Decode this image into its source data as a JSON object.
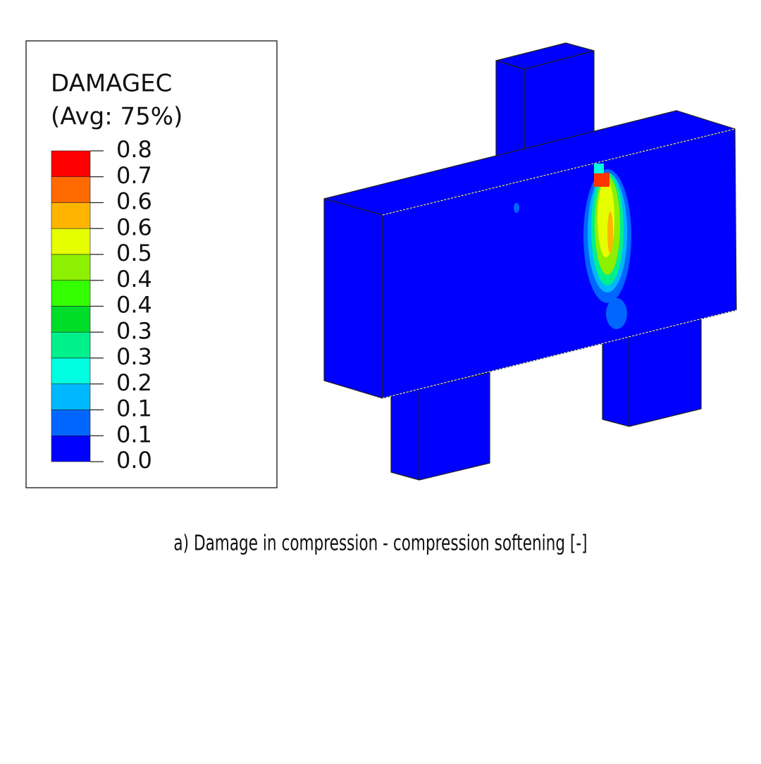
{
  "legend": {
    "title": "DAMAGEC",
    "subtitle": "(Avg: 75%)",
    "labels": [
      "0.8",
      "0.7",
      "0.6",
      "0.6",
      "0.5",
      "0.4",
      "0.4",
      "0.3",
      "0.3",
      "0.2",
      "0.1",
      "0.1",
      "0.0"
    ],
    "colors": [
      "#ff0000",
      "#ff6a00",
      "#ffb400",
      "#e6ff00",
      "#8cf000",
      "#33ff00",
      "#00dd28",
      "#00f08c",
      "#00ffe0",
      "#00b8ff",
      "#0066ff",
      "#0000ff"
    ]
  },
  "caption": "a) Damage in compression - compression softening [-]"
}
